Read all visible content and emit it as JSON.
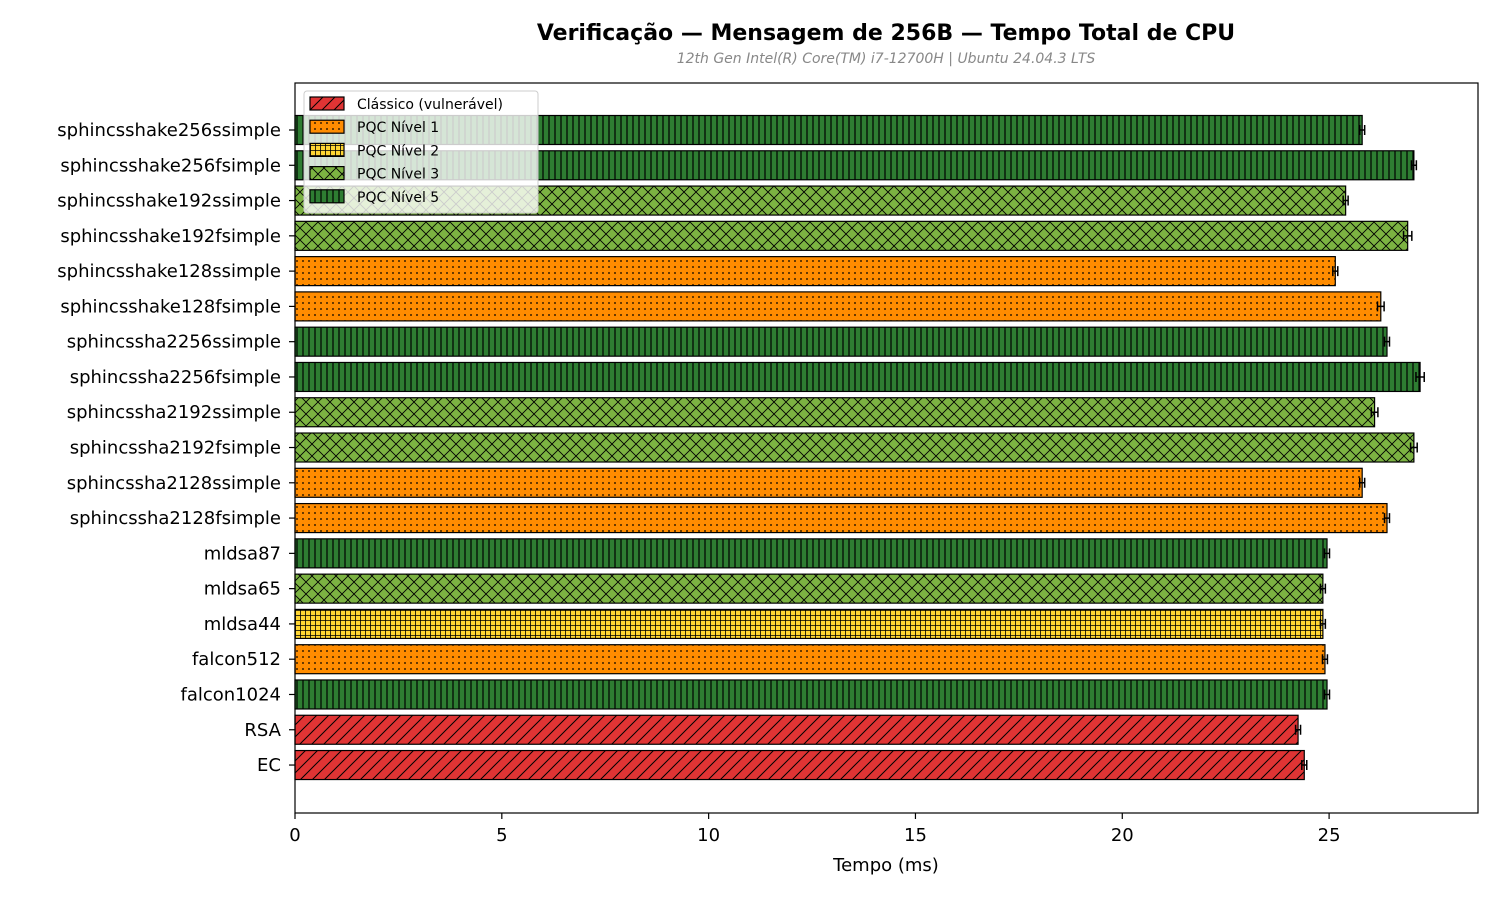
{
  "chart_data": {
    "type": "bar",
    "orientation": "horizontal",
    "title": "Verificação — Mensagem de 256B — Tempo Total de CPU",
    "subtitle": "12th Gen Intel(R) Core(TM) i7-12700H | Ubuntu 24.04.3 LTS",
    "xlabel": "Tempo (ms)",
    "ylabel": "",
    "xlim": [
      0,
      28.6
    ],
    "xticks": [
      0,
      5,
      10,
      15,
      20,
      25
    ],
    "grid": false,
    "legend_position": "top-left",
    "categories": [
      "sphincsshake256ssimple",
      "sphincsshake256fsimple",
      "sphincsshake192ssimple",
      "sphincsshake192fsimple",
      "sphincsshake128ssimple",
      "sphincsshake128fsimple",
      "sphincssha2256ssimple",
      "sphincssha2256fsimple",
      "sphincssha2192ssimple",
      "sphincssha2192fsimple",
      "sphincssha2128ssimple",
      "sphincssha2128fsimple",
      "mldsa87",
      "mldsa65",
      "mldsa44",
      "falcon512",
      "falcon1024",
      "RSA",
      "EC"
    ],
    "values": [
      25.8,
      27.05,
      25.4,
      26.9,
      25.15,
      26.25,
      26.4,
      27.2,
      26.1,
      27.05,
      25.8,
      26.4,
      24.95,
      24.85,
      24.85,
      24.9,
      24.95,
      24.25,
      24.4
    ],
    "errors": [
      0.06,
      0.06,
      0.06,
      0.1,
      0.06,
      0.08,
      0.06,
      0.1,
      0.08,
      0.08,
      0.06,
      0.06,
      0.06,
      0.06,
      0.06,
      0.06,
      0.06,
      0.06,
      0.06
    ],
    "groups": [
      "PQC Nível 5",
      "PQC Nível 5",
      "PQC Nível 3",
      "PQC Nível 3",
      "PQC Nível 1",
      "PQC Nível 1",
      "PQC Nível 5",
      "PQC Nível 5",
      "PQC Nível 3",
      "PQC Nível 3",
      "PQC Nível 1",
      "PQC Nível 1",
      "PQC Nível 5",
      "PQC Nível 3",
      "PQC Nível 2",
      "PQC Nível 1",
      "PQC Nível 5",
      "Clássico (vulnerável)",
      "Clássico (vulnerável)"
    ],
    "legend": [
      {
        "label": "Clássico (vulnerável)",
        "color": "#e03434",
        "hatch": "diagonal"
      },
      {
        "label": "PQC Nível 1",
        "color": "#ff8c00",
        "hatch": "dots"
      },
      {
        "label": "PQC Nível 2",
        "color": "#ffd633",
        "hatch": "grid"
      },
      {
        "label": "PQC Nível 3",
        "color": "#7cb342",
        "hatch": "crosshatch"
      },
      {
        "label": "PQC Nível 5",
        "color": "#2e7d32",
        "hatch": "vertical"
      }
    ]
  }
}
